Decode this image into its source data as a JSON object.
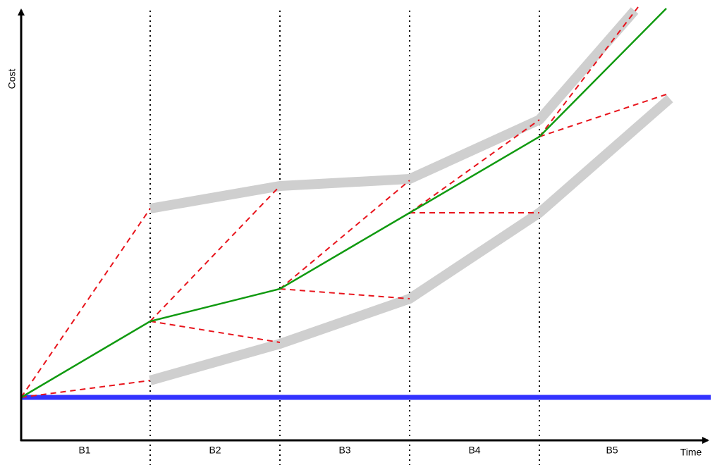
{
  "axes": {
    "y_label": "Cost",
    "x_label": "Time"
  },
  "segments": [
    "B1",
    "B2",
    "B3",
    "B4",
    "B5"
  ]
}
